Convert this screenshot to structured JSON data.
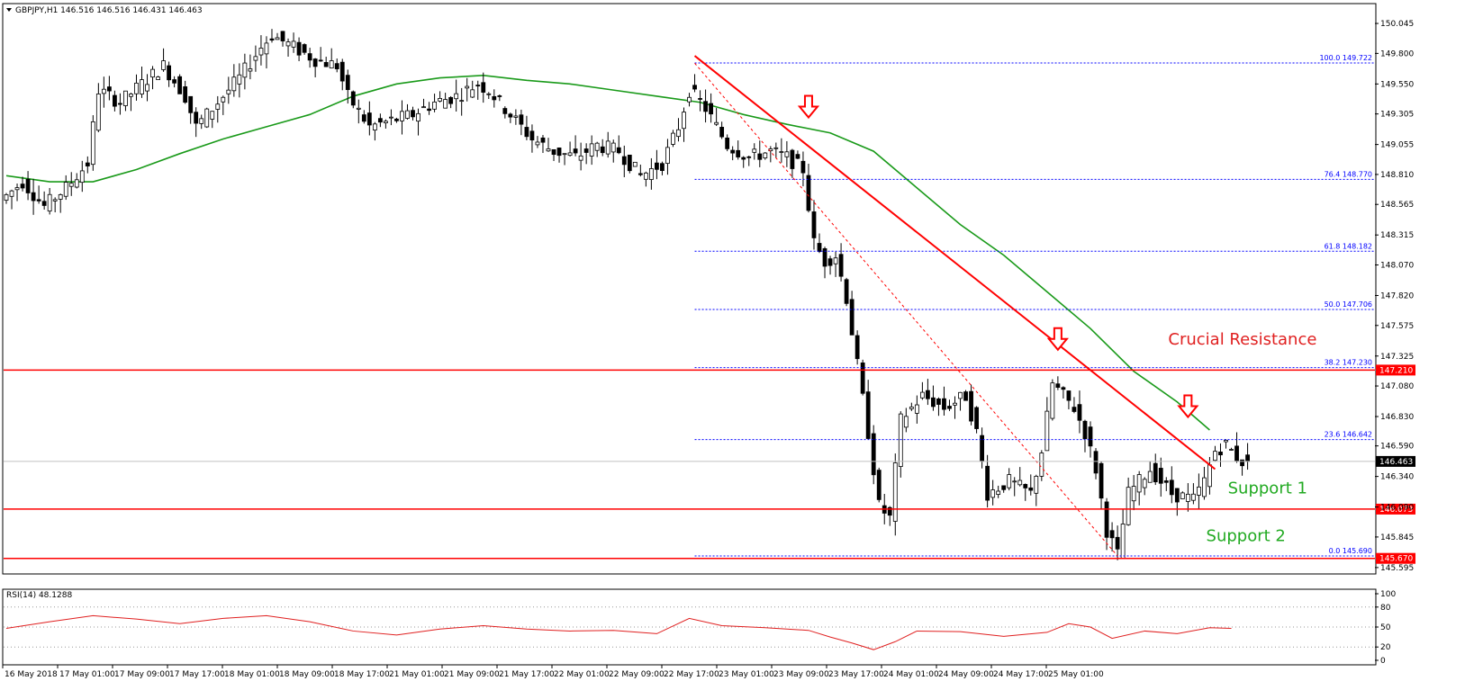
{
  "header": {
    "symbol_line": "GBPJPY,H1  146.516 146.516 146.431 146.463"
  },
  "colors": {
    "background": "#ffffff",
    "candle_bull": "#ffffff",
    "candle_bear": "#000000",
    "moving_average": "#1a9a1a",
    "trendline": "#ff0000",
    "horizontal_level": "#ff0000",
    "fib_level": "#0000ff",
    "rsi_line": "#e02020",
    "annotation_resistance": "#e02020",
    "annotation_support": "#22aa22"
  },
  "chart_data": [
    {
      "type": "candlestick",
      "symbol": "GBPJPY",
      "timeframe": "H1",
      "ylim": [
        145.55,
        150.2
      ],
      "y_ticks": [
        "150.045",
        "149.800",
        "149.550",
        "149.305",
        "149.055",
        "148.810",
        "148.565",
        "148.315",
        "148.070",
        "147.820",
        "147.575",
        "147.325",
        "147.080",
        "146.830",
        "146.590",
        "146.340",
        "146.090",
        "145.845",
        "145.595"
      ],
      "x_tick_labels": [
        "16 May 2018",
        "17 May 01:00",
        "17 May 09:00",
        "17 May 17:00",
        "18 May 01:00",
        "18 May 09:00",
        "18 May 17:00",
        "21 May 01:00",
        "21 May 09:00",
        "21 May 17:00",
        "22 May 01:00",
        "22 May 09:00",
        "22 May 17:00",
        "23 May 01:00",
        "23 May 09:00",
        "23 May 17:00",
        "24 May 01:00",
        "24 May 09:00",
        "24 May 17:00",
        "25 May 01:00"
      ],
      "price_path": [
        [
          0,
          148.6
        ],
        [
          4,
          148.75
        ],
        [
          8,
          148.55
        ],
        [
          12,
          148.7
        ],
        [
          16,
          148.9
        ],
        [
          18,
          149.5
        ],
        [
          22,
          149.4
        ],
        [
          26,
          149.55
        ],
        [
          30,
          149.7
        ],
        [
          34,
          149.45
        ],
        [
          36,
          149.2
        ],
        [
          40,
          149.4
        ],
        [
          44,
          149.6
        ],
        [
          48,
          149.85
        ],
        [
          50,
          149.95
        ],
        [
          54,
          149.85
        ],
        [
          58,
          149.75
        ],
        [
          62,
          149.7
        ],
        [
          64,
          149.45
        ],
        [
          68,
          149.2
        ],
        [
          72,
          149.25
        ],
        [
          76,
          149.3
        ],
        [
          80,
          149.4
        ],
        [
          84,
          149.45
        ],
        [
          88,
          149.55
        ],
        [
          90,
          149.5
        ],
        [
          94,
          149.3
        ],
        [
          98,
          149.1
        ],
        [
          102,
          149.0
        ],
        [
          106,
          148.95
        ],
        [
          110,
          149.05
        ],
        [
          114,
          149.0
        ],
        [
          118,
          148.8
        ],
        [
          122,
          148.9
        ],
        [
          125,
          149.2
        ],
        [
          127,
          149.5
        ],
        [
          130,
          149.35
        ],
        [
          134,
          149.05
        ],
        [
          138,
          148.95
        ],
        [
          142,
          149.0
        ],
        [
          145,
          148.95
        ],
        [
          148,
          148.85
        ],
        [
          150,
          148.25
        ],
        [
          152,
          148.1
        ],
        [
          154,
          148.15
        ],
        [
          156,
          147.8
        ],
        [
          158,
          147.25
        ],
        [
          160,
          146.7
        ],
        [
          162,
          146.1
        ],
        [
          164,
          146.0
        ],
        [
          166,
          146.8
        ],
        [
          170,
          147.0
        ],
        [
          174,
          146.9
        ],
        [
          178,
          147.0
        ],
        [
          180,
          146.7
        ],
        [
          182,
          146.2
        ],
        [
          186,
          146.3
        ],
        [
          190,
          146.2
        ],
        [
          192,
          146.55
        ],
        [
          194,
          147.1
        ],
        [
          198,
          146.9
        ],
        [
          200,
          146.7
        ],
        [
          202,
          146.4
        ],
        [
          204,
          145.9
        ],
        [
          206,
          145.7
        ],
        [
          208,
          146.2
        ],
        [
          212,
          146.4
        ],
        [
          216,
          146.2
        ],
        [
          220,
          146.15
        ],
        [
          222,
          146.3
        ],
        [
          224,
          146.55
        ],
        [
          226,
          146.6
        ],
        [
          228,
          146.5
        ],
        [
          229,
          146.463
        ]
      ],
      "moving_average_path": [
        [
          0,
          148.8
        ],
        [
          8,
          148.75
        ],
        [
          16,
          148.75
        ],
        [
          24,
          148.85
        ],
        [
          32,
          148.98
        ],
        [
          40,
          149.1
        ],
        [
          48,
          149.2
        ],
        [
          56,
          149.3
        ],
        [
          64,
          149.45
        ],
        [
          72,
          149.55
        ],
        [
          80,
          149.6
        ],
        [
          88,
          149.62
        ],
        [
          96,
          149.58
        ],
        [
          104,
          149.55
        ],
        [
          112,
          149.5
        ],
        [
          120,
          149.45
        ],
        [
          128,
          149.4
        ],
        [
          136,
          149.3
        ],
        [
          144,
          149.22
        ],
        [
          152,
          149.15
        ],
        [
          160,
          149.0
        ],
        [
          168,
          148.7
        ],
        [
          176,
          148.4
        ],
        [
          184,
          148.15
        ],
        [
          192,
          147.85
        ],
        [
          200,
          147.55
        ],
        [
          208,
          147.2
        ],
        [
          216,
          146.95
        ],
        [
          222,
          146.72
        ]
      ],
      "fibonacci_levels": [
        {
          "label": "100.0 149.722",
          "value": 149.722
        },
        {
          "label": "76.4 148.770",
          "value": 148.77
        },
        {
          "label": "61.8 148.182",
          "value": 148.182
        },
        {
          "label": "50.0 147.706",
          "value": 147.706
        },
        {
          "label": "38.2 147.230",
          "value": 147.23
        },
        {
          "label": "23.6 146.642",
          "value": 146.642
        },
        {
          "label": "0.0 145.690",
          "value": 145.69
        }
      ],
      "horizontal_levels": [
        {
          "label": "147.210",
          "value": 147.21
        },
        {
          "label": "146.073",
          "value": 146.073
        },
        {
          "label": "145.670",
          "value": 145.67
        }
      ],
      "current_price": {
        "label": "146.463",
        "value": 146.463
      },
      "trendline": {
        "start": [
          127,
          149.78
        ],
        "end": [
          223,
          146.4
        ]
      },
      "fib_swing_line": {
        "start": [
          127,
          149.72
        ],
        "end": [
          205,
          145.69
        ]
      },
      "arrows": [
        {
          "bar": 148,
          "value": 149.35
        },
        {
          "bar": 194,
          "value": 147.45
        },
        {
          "bar": 218,
          "value": 146.9
        }
      ],
      "annotations": [
        {
          "text": "Crucial Resistance",
          "anchor_bar": 221,
          "value": 147.42
        },
        {
          "text": "Support 1",
          "anchor_bar": 232,
          "value": 146.2
        },
        {
          "text": "Support 2",
          "anchor_bar": 228,
          "value": 145.81
        }
      ]
    },
    {
      "type": "line",
      "title": "RSI(14) 48.1288",
      "ylim": [
        0,
        100
      ],
      "y_ticks": [
        "100",
        "80",
        "50",
        "20",
        "0"
      ],
      "x": [
        0,
        8,
        16,
        24,
        32,
        40,
        48,
        56,
        64,
        72,
        80,
        88,
        96,
        104,
        112,
        120,
        126,
        132,
        140,
        148,
        152,
        156,
        160,
        164,
        168,
        176,
        184,
        192,
        196,
        200,
        204,
        210,
        216,
        222,
        226
      ],
      "values": [
        48,
        58,
        67,
        62,
        55,
        63,
        67,
        58,
        44,
        38,
        47,
        52,
        47,
        44,
        45,
        40,
        63,
        52,
        49,
        45,
        35,
        26,
        16,
        28,
        44,
        43,
        36,
        42,
        55,
        50,
        33,
        44,
        40,
        49,
        48
      ]
    }
  ]
}
